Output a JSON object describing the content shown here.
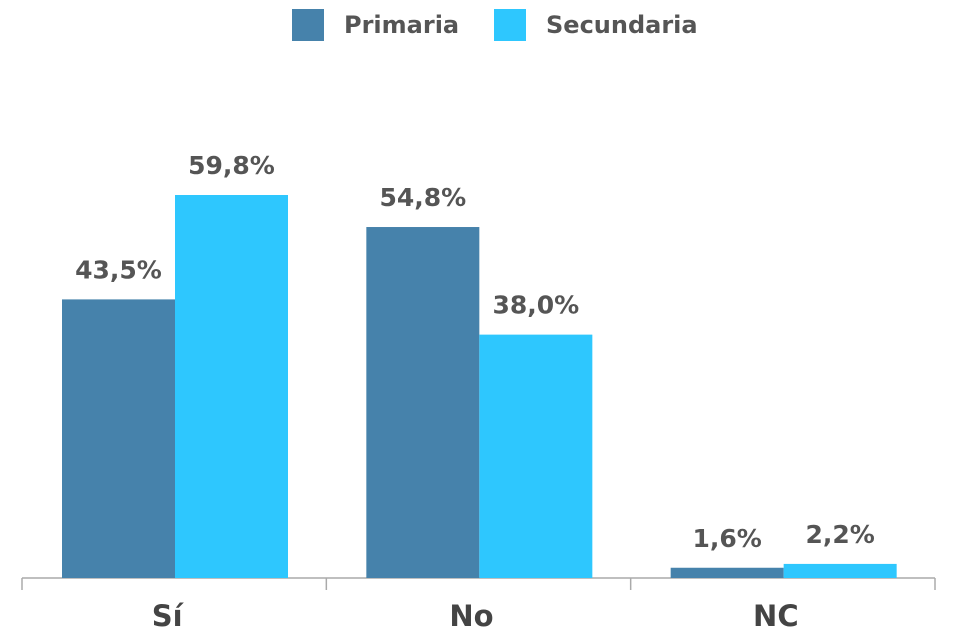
{
  "chart_data": {
    "type": "bar",
    "categories": [
      "Sí",
      "No",
      "NC"
    ],
    "series": [
      {
        "name": "Primaria",
        "color": "#4682ab",
        "values": [
          43.5,
          54.8,
          1.6
        ],
        "value_labels": [
          "43,5%",
          "54,8%",
          "1,6%"
        ]
      },
      {
        "name": "Secundaria",
        "color": "#2ec7fe",
        "values": [
          59.8,
          38.0,
          2.2
        ],
        "value_labels": [
          "59,8%",
          "38,0%",
          "2,2%"
        ]
      }
    ]
  }
}
